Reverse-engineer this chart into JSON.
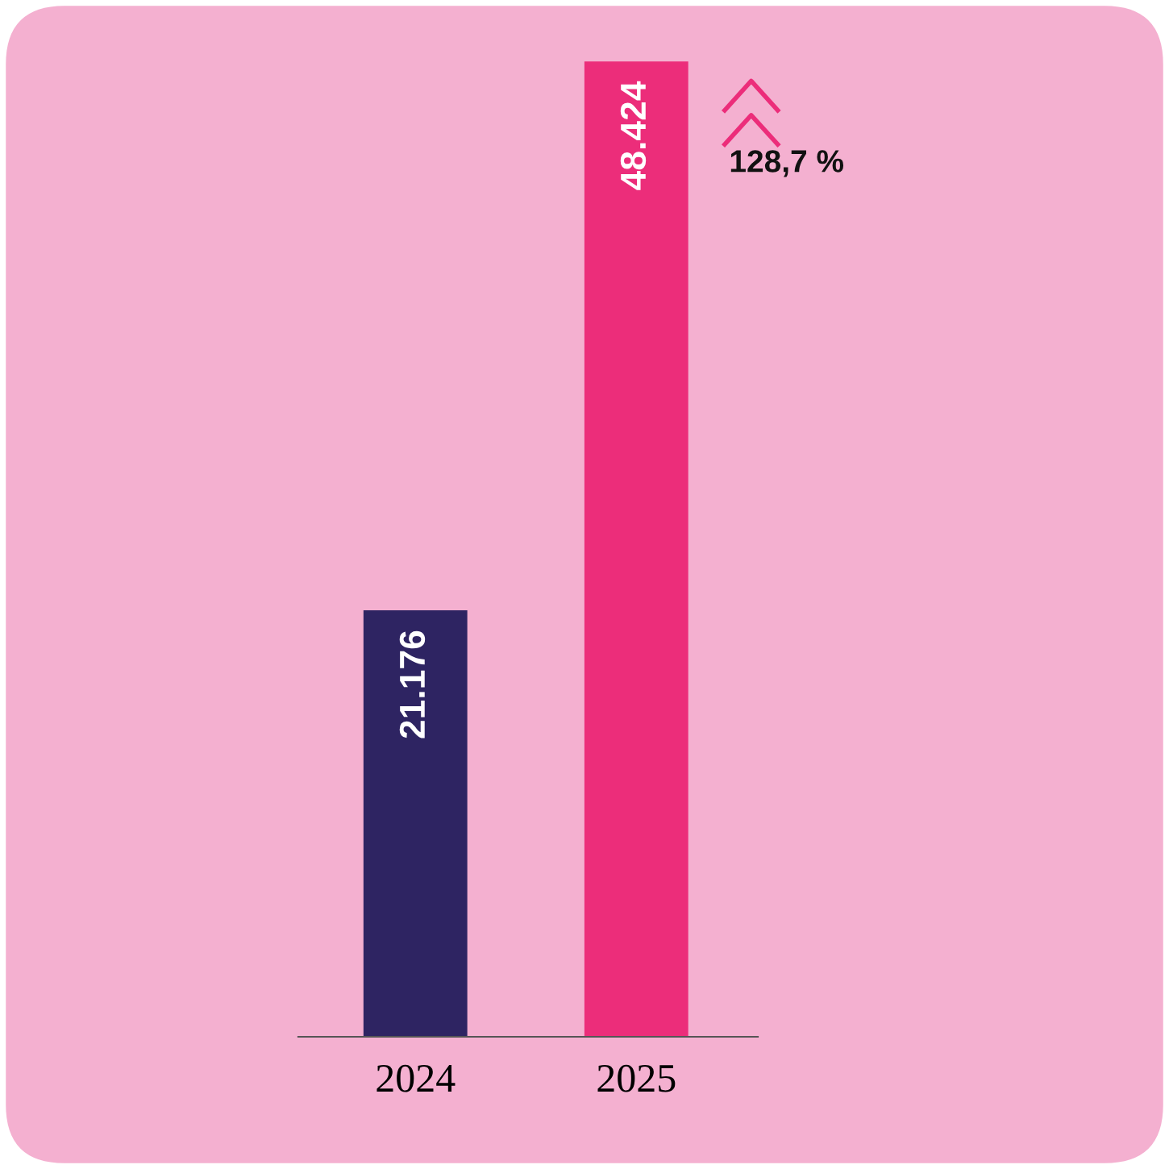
{
  "chart_data": {
    "type": "bar",
    "categories": [
      "2024",
      "2025"
    ],
    "values": [
      21176,
      48424
    ],
    "colors": [
      "#2e2462",
      "#ec2d7a"
    ],
    "value_labels": [
      "21.176",
      "48.424"
    ],
    "annotations": [
      "128,7 %"
    ],
    "grid": false,
    "legend": false,
    "tick_labels": "x"
  }
}
